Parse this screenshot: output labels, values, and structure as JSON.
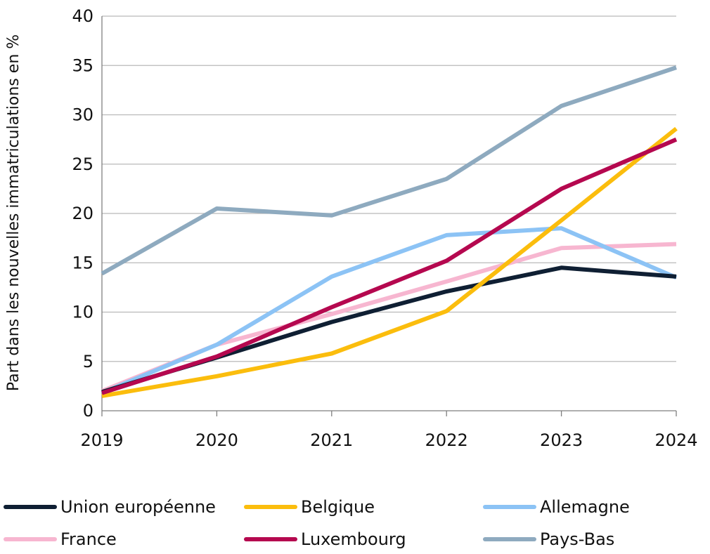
{
  "chart_data": {
    "type": "line",
    "title": "",
    "xlabel": "",
    "ylabel": "Part dans les nouvelles immatriculations en %",
    "x": [
      "2019",
      "2020",
      "2021",
      "2022",
      "2023",
      "2024"
    ],
    "ylim": [
      0,
      40
    ],
    "yticks": [
      "0",
      "5",
      "10",
      "15",
      "20",
      "25",
      "30",
      "35",
      "40"
    ],
    "grid": "horizontal",
    "legend_position": "bottom",
    "series": [
      {
        "name": "Pays-Bas",
        "color": "#8eaabf",
        "values": [
          13.9,
          20.5,
          19.8,
          23.5,
          30.9,
          34.8
        ]
      },
      {
        "name": "France",
        "color": "#f7b6d0",
        "values": [
          2.0,
          6.7,
          9.8,
          13.1,
          16.5,
          16.9
        ]
      },
      {
        "name": "Allemagne",
        "color": "#8cc3f5",
        "values": [
          1.8,
          6.7,
          13.6,
          17.8,
          18.5,
          13.5
        ]
      },
      {
        "name": "Union européenne",
        "color": "#0f1f33",
        "values": [
          1.9,
          5.4,
          9.0,
          12.1,
          14.5,
          13.6
        ]
      },
      {
        "name": "Belgique",
        "color": "#fbbd0d",
        "values": [
          1.5,
          3.5,
          5.8,
          10.1,
          19.3,
          28.6
        ]
      },
      {
        "name": "Luxembourg",
        "color": "#b5084f",
        "values": [
          1.8,
          5.5,
          10.5,
          15.2,
          22.5,
          27.5
        ]
      }
    ],
    "legend": [
      {
        "name": "Union européenne",
        "color": "#0f1f33"
      },
      {
        "name": "Belgique",
        "color": "#fbbd0d"
      },
      {
        "name": "Allemagne",
        "color": "#8cc3f5"
      },
      {
        "name": "France",
        "color": "#f7b6d0"
      },
      {
        "name": "Luxembourg",
        "color": "#b5084f"
      },
      {
        "name": "Pays-Bas",
        "color": "#8eaabf"
      }
    ]
  }
}
